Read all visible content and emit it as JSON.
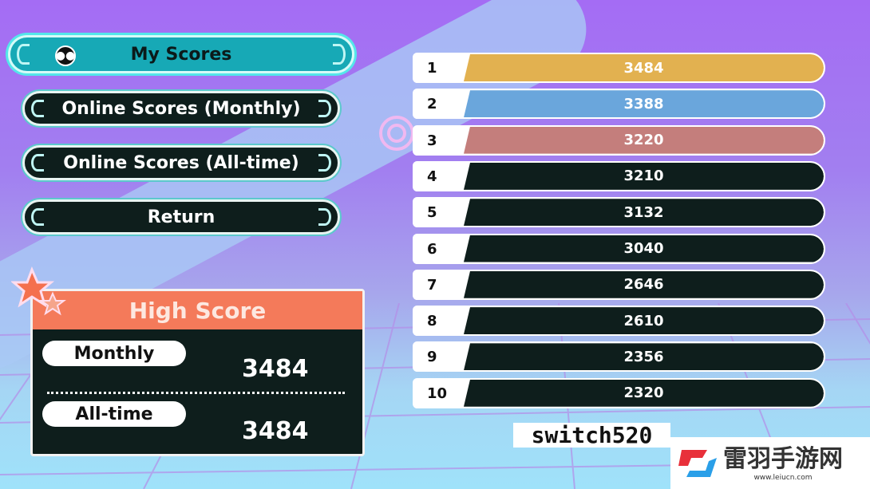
{
  "menu": {
    "title": "My Scores",
    "title_icon": "mask-icon",
    "items": [
      {
        "label": "Online Scores (Monthly)"
      },
      {
        "label": "Online Scores (All-time)"
      },
      {
        "label": "Return"
      }
    ]
  },
  "high_score": {
    "title": "High Score",
    "monthly_label": "Monthly",
    "monthly_value": "3484",
    "alltime_label": "All-time",
    "alltime_value": "3484"
  },
  "leaderboard": [
    {
      "rank": "1",
      "score": "3484",
      "color": "#e2b150"
    },
    {
      "rank": "2",
      "score": "3388",
      "color": "#6aa6dc"
    },
    {
      "rank": "3",
      "score": "3220",
      "color": "#c47e7c"
    },
    {
      "rank": "4",
      "score": "3210",
      "color": "#0e1e1c"
    },
    {
      "rank": "5",
      "score": "3132",
      "color": "#0e1e1c"
    },
    {
      "rank": "6",
      "score": "3040",
      "color": "#0e1e1c"
    },
    {
      "rank": "7",
      "score": "2646",
      "color": "#0e1e1c"
    },
    {
      "rank": "8",
      "score": "2610",
      "color": "#0e1e1c"
    },
    {
      "rank": "9",
      "score": "2356",
      "color": "#0e1e1c"
    },
    {
      "rank": "10",
      "score": "2320",
      "color": "#0e1e1c"
    }
  ],
  "watermarks": {
    "switch": "switch520",
    "site_name": "雷羽手游网",
    "site_url": "www.leiucn.com"
  }
}
